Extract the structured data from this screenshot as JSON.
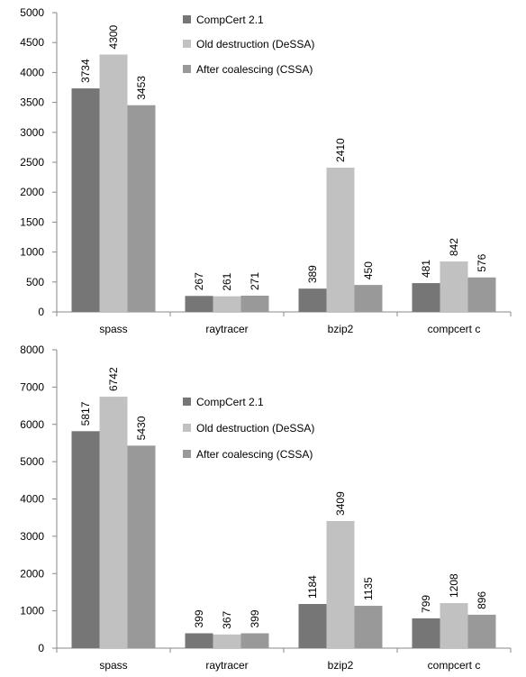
{
  "chart_data": [
    {
      "type": "bar",
      "categories": [
        "spass",
        "raytracer",
        "bzip2",
        "compcert c"
      ],
      "series": [
        {
          "name": "CompCert 2.1",
          "values": [
            3734,
            267,
            389,
            481
          ]
        },
        {
          "name": "Old destruction (DeSSA)",
          "values": [
            4300,
            261,
            2410,
            842
          ]
        },
        {
          "name": "After coalescing (CSSA)",
          "values": [
            3453,
            271,
            450,
            576
          ]
        }
      ],
      "ylim": [
        0,
        5000
      ],
      "yticks": [
        0,
        500,
        1000,
        1500,
        2000,
        2500,
        3000,
        3500,
        4000,
        4500,
        5000
      ],
      "legend": "top-center",
      "grid": false
    },
    {
      "type": "bar",
      "categories": [
        "spass",
        "raytracer",
        "bzip2",
        "compcert c"
      ],
      "series": [
        {
          "name": "CompCert 2.1",
          "values": [
            5817,
            399,
            1184,
            799
          ]
        },
        {
          "name": "Old destruction (DeSSA)",
          "values": [
            6742,
            367,
            3409,
            1208
          ]
        },
        {
          "name": "After coalescing (CSSA)",
          "values": [
            5430,
            399,
            1135,
            896
          ]
        }
      ],
      "ylim": [
        0,
        8000
      ],
      "yticks": [
        0,
        1000,
        2000,
        3000,
        4000,
        5000,
        6000,
        7000,
        8000
      ],
      "legend": "top-center",
      "grid": false
    }
  ],
  "colors": [
    "#767676",
    "#c1c1c1",
    "#999999"
  ]
}
